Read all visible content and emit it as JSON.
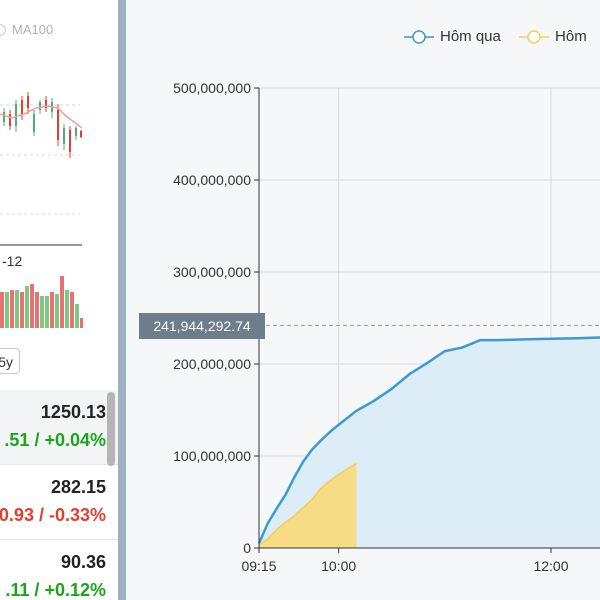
{
  "left_panel": {
    "ma_legend": "MA100",
    "mini_chart_date": "-12",
    "period_button": "5y",
    "indices": [
      {
        "value": "1250.13",
        "change": ".51 / +0.04%",
        "direction": "up",
        "selected": true
      },
      {
        "value": "282.15",
        "change": "0.93 / -0.33%",
        "direction": "down",
        "selected": false
      },
      {
        "value": "90.36",
        "change": ".11 / +0.12%",
        "direction": "up",
        "selected": false
      }
    ]
  },
  "main_chart": {
    "legend": [
      {
        "name": "Hôm qua",
        "color": "#3b9ad4"
      },
      {
        "name": "Hôm",
        "color": "#f5d56a"
      }
    ],
    "crosshair_value": "241,944,292.74",
    "colors": {
      "yesterday_line": "#3b9ad4",
      "yesterday_fill": "#dcedf7",
      "today_fill": "#f6dc84",
      "today_line": "#f3cf5a"
    }
  },
  "chart_data": {
    "type": "area",
    "ylim": [
      0,
      500000000
    ],
    "yticks": [
      "0",
      "100,000,000",
      "200,000,000",
      "300,000,000",
      "400,000,000",
      "500,000,000"
    ],
    "xticks": [
      "09:15",
      "10:00",
      "12:00"
    ],
    "crosshair_y": 241944292.74,
    "series": [
      {
        "name": "Hôm qua",
        "x": [
          "09:15",
          "09:20",
          "09:25",
          "09:30",
          "09:35",
          "09:40",
          "09:45",
          "09:50",
          "09:55",
          "10:00",
          "10:10",
          "10:20",
          "10:30",
          "10:40",
          "10:50",
          "11:00",
          "11:10",
          "11:20",
          "11:30",
          "11:40",
          "11:50",
          "12:00",
          "12:15",
          "12:30"
        ],
        "values": [
          5000000,
          27000000,
          43000000,
          58000000,
          77000000,
          94000000,
          107000000,
          117000000,
          126000000,
          134000000,
          149000000,
          160000000,
          173000000,
          189000000,
          201000000,
          214000000,
          218000000,
          226000000,
          226000000,
          226500000,
          227000000,
          227500000,
          228000000,
          229000000
        ]
      },
      {
        "name": "Hôm",
        "x": [
          "09:15",
          "09:20",
          "09:25",
          "09:30",
          "09:35",
          "09:40",
          "09:45",
          "09:50",
          "09:55",
          "10:00",
          "10:05",
          "10:10"
        ],
        "values": [
          3000000,
          10000000,
          20000000,
          28000000,
          35000000,
          44000000,
          53000000,
          65000000,
          73000000,
          80000000,
          86000000,
          92000000
        ]
      }
    ]
  }
}
